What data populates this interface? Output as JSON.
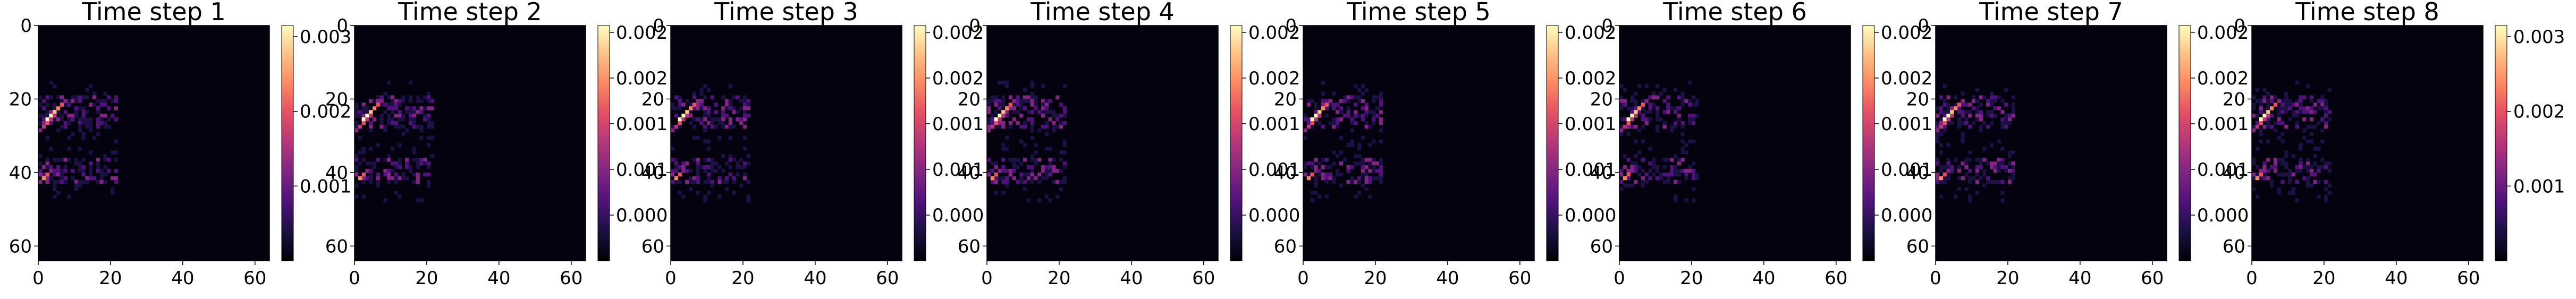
{
  "chart_data": [
    {
      "type": "heatmap",
      "title": "Time step 1",
      "x_ticks": [
        0,
        20,
        40,
        60
      ],
      "y_ticks": [
        0,
        20,
        40,
        60
      ],
      "extent": [
        0,
        64
      ],
      "colormap": "magma",
      "colorbar_ticks": [
        "0.001",
        "0.002",
        "0.003"
      ],
      "colorbar_range": [
        0.0,
        0.0033
      ]
    },
    {
      "type": "heatmap",
      "title": "Time step 2",
      "x_ticks": [
        0,
        20,
        40,
        60
      ],
      "y_ticks": [
        0,
        20,
        40,
        60
      ],
      "extent": [
        0,
        64
      ],
      "colormap": "magma",
      "colorbar_ticks": [
        "0.000",
        "0.001",
        "0.001",
        "0.002",
        "0.002"
      ],
      "colorbar_range": [
        0.0,
        0.0028
      ]
    },
    {
      "type": "heatmap",
      "title": "Time step 3",
      "x_ticks": [
        0,
        20,
        40,
        60
      ],
      "y_ticks": [
        0,
        20,
        40,
        60
      ],
      "extent": [
        0,
        64
      ],
      "colormap": "magma",
      "colorbar_ticks": [
        "0.000",
        "0.001",
        "0.001",
        "0.002",
        "0.002"
      ],
      "colorbar_range": [
        0.0,
        0.0028
      ]
    },
    {
      "type": "heatmap",
      "title": "Time step 4",
      "x_ticks": [
        0,
        20,
        40,
        60
      ],
      "y_ticks": [
        0,
        20,
        40,
        60
      ],
      "extent": [
        0,
        64
      ],
      "colormap": "magma",
      "colorbar_ticks": [
        "0.000",
        "0.001",
        "0.001",
        "0.002",
        "0.002"
      ],
      "colorbar_range": [
        0.0,
        0.0028
      ]
    },
    {
      "type": "heatmap",
      "title": "Time step 5",
      "x_ticks": [
        0,
        20,
        40,
        60
      ],
      "y_ticks": [
        0,
        20,
        40,
        60
      ],
      "extent": [
        0,
        64
      ],
      "colormap": "magma",
      "colorbar_ticks": [
        "0.000",
        "0.001",
        "0.001",
        "0.002",
        "0.002"
      ],
      "colorbar_range": [
        0.0,
        0.0028
      ]
    },
    {
      "type": "heatmap",
      "title": "Time step 6",
      "x_ticks": [
        0,
        20,
        40,
        60
      ],
      "y_ticks": [
        0,
        20,
        40,
        60
      ],
      "extent": [
        0,
        64
      ],
      "colormap": "magma",
      "colorbar_ticks": [
        "0.000",
        "0.001",
        "0.001",
        "0.002",
        "0.002"
      ],
      "colorbar_range": [
        0.0,
        0.0028
      ]
    },
    {
      "type": "heatmap",
      "title": "Time step 7",
      "x_ticks": [
        0,
        20,
        40,
        60
      ],
      "y_ticks": [
        0,
        20,
        40,
        60
      ],
      "extent": [
        0,
        64
      ],
      "colormap": "magma",
      "colorbar_ticks": [
        "0.000",
        "0.001",
        "0.001",
        "0.002",
        "0.002"
      ],
      "colorbar_range": [
        0.0,
        0.0028
      ]
    },
    {
      "type": "heatmap",
      "title": "Time step 8",
      "x_ticks": [
        0,
        20,
        40,
        60
      ],
      "y_ticks": [
        0,
        20,
        40,
        60
      ],
      "extent": [
        0,
        64
      ],
      "colormap": "magma",
      "colorbar_ticks": [
        "0.001",
        "0.002",
        "0.003"
      ],
      "colorbar_range": [
        0.0,
        0.0035
      ]
    }
  ]
}
